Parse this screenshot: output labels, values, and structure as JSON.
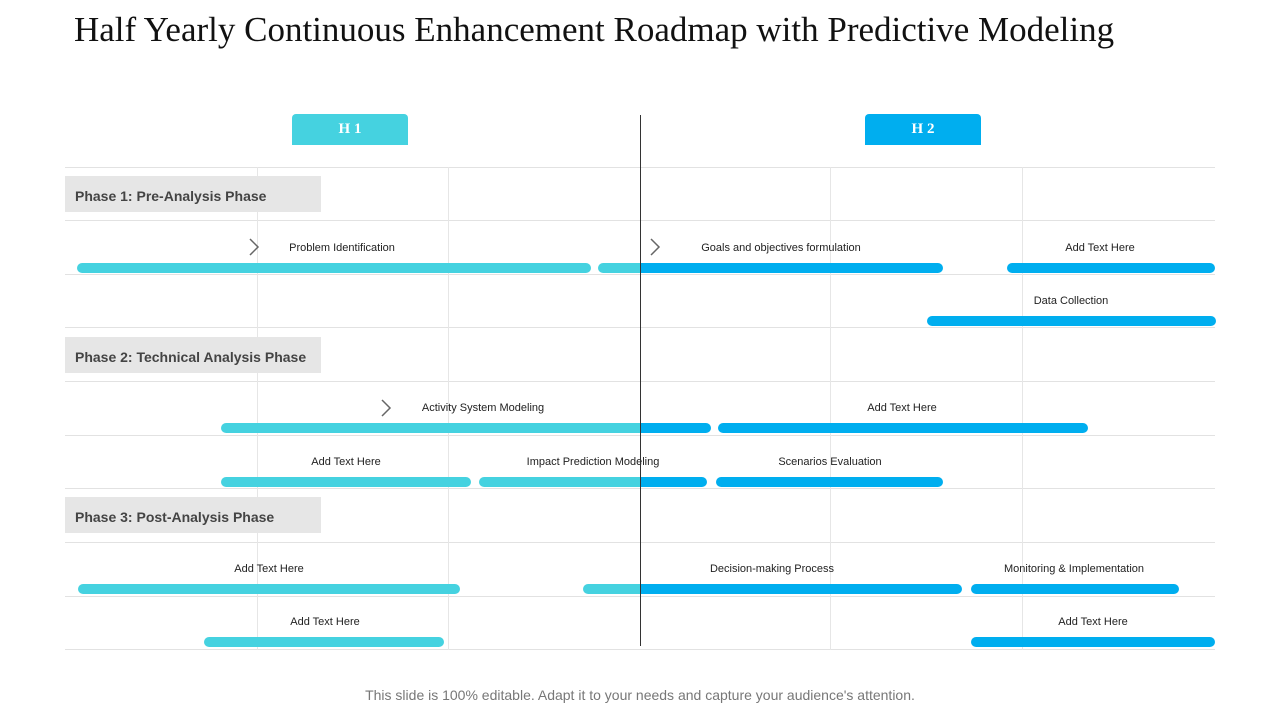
{
  "title": "Half Yearly Continuous Enhancement Roadmap with Predictive Modeling",
  "halves": {
    "h1": "H 1",
    "h2": "H 2"
  },
  "phases": [
    "Phase 1: Pre-Analysis Phase",
    "Phase 2: Technical Analysis Phase",
    "Phase 3: Post-Analysis Phase"
  ],
  "tasks": [
    "Problem Identification",
    "Goals and objectives formulation",
    "Add Text Here",
    "Data Collection",
    "Activity System Modeling",
    "Add Text Here",
    "Add Text Here",
    "Impact Prediction Modeling",
    "Scenarios Evaluation",
    "Add Text Here",
    "Decision-making Process",
    "Monitoring & Implementation",
    "Add Text Here",
    "Add Text Here"
  ],
  "colors": {
    "h1": "#45d2e0",
    "h2": "#00aeef",
    "phase_bg": "#e6e6e6"
  },
  "icons": {
    "marker": "chevron-right-icon"
  },
  "footer": "This slide is 100% editable. Adapt it to your needs and capture your audience's attention."
}
